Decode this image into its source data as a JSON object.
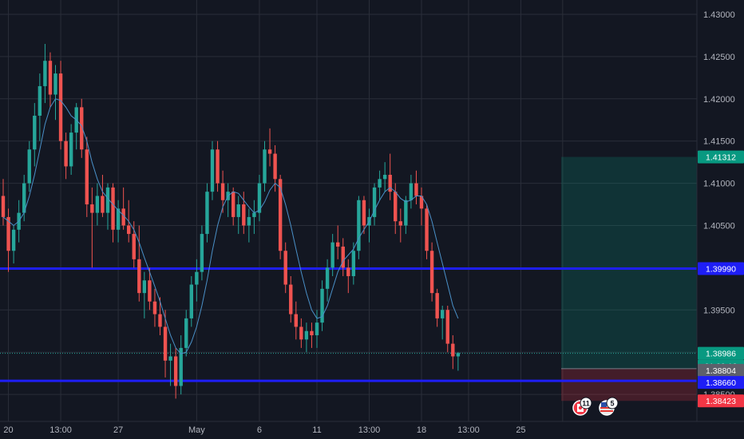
{
  "chart_data": {
    "type": "candlestick",
    "instrument_pair": "",
    "ylim": [
      1.38,
      1.431
    ],
    "y_ticks": [
      "1.43000",
      "1.42500",
      "1.42000",
      "1.41500",
      "1.41000",
      "1.40500",
      "1.40000",
      "1.39500",
      "1.39000",
      "1.38500"
    ],
    "x_ticks": [
      {
        "label": "20",
        "idx": 1
      },
      {
        "label": "13:00",
        "idx": 11
      },
      {
        "label": "27",
        "idx": 22
      },
      {
        "label": "May",
        "idx": 37
      },
      {
        "label": "6",
        "idx": 49
      },
      {
        "label": "11",
        "idx": 60
      },
      {
        "label": "13:00",
        "idx": 70
      },
      {
        "label": "18",
        "idx": 80
      },
      {
        "label": "13:00",
        "idx": 89
      },
      {
        "label": "25",
        "idx": 99
      },
      {
        "label": "",
        "idx": 107
      }
    ],
    "candles": [
      [
        1.4085,
        1.4105,
        1.405,
        1.406
      ],
      [
        1.406,
        1.407,
        1.3995,
        1.402
      ],
      [
        1.402,
        1.405,
        1.4005,
        1.4045
      ],
      [
        1.4045,
        1.408,
        1.403,
        1.4065
      ],
      [
        1.4065,
        1.411,
        1.4055,
        1.41
      ],
      [
        1.41,
        1.415,
        1.409,
        1.414
      ],
      [
        1.414,
        1.4195,
        1.412,
        1.418
      ],
      [
        1.418,
        1.423,
        1.415,
        1.4215
      ],
      [
        1.4215,
        1.4265,
        1.4195,
        1.4245
      ],
      [
        1.4245,
        1.4255,
        1.419,
        1.4205
      ],
      [
        1.4205,
        1.424,
        1.4175,
        1.423
      ],
      [
        1.423,
        1.4245,
        1.414,
        1.415
      ],
      [
        1.415,
        1.416,
        1.4105,
        1.412
      ],
      [
        1.412,
        1.417,
        1.411,
        1.416
      ],
      [
        1.416,
        1.4195,
        1.414,
        1.419
      ],
      [
        1.419,
        1.42,
        1.413,
        1.414
      ],
      [
        1.414,
        1.4155,
        1.406,
        1.4075
      ],
      [
        1.4075,
        1.4095,
        1.4,
        1.4065
      ],
      [
        1.4065,
        1.41,
        1.405,
        1.4085
      ],
      [
        1.4085,
        1.411,
        1.406,
        1.4065
      ],
      [
        1.4065,
        1.41,
        1.4045,
        1.4095
      ],
      [
        1.4095,
        1.41,
        1.403,
        1.4045
      ],
      [
        1.4045,
        1.408,
        1.403,
        1.407
      ],
      [
        1.407,
        1.4095,
        1.4045,
        1.405
      ],
      [
        1.405,
        1.408,
        1.403,
        1.404
      ],
      [
        1.404,
        1.4055,
        1.4,
        1.401
      ],
      [
        1.401,
        1.405,
        1.396,
        1.397
      ],
      [
        1.397,
        1.3995,
        1.394,
        1.3985
      ],
      [
        1.3985,
        1.4,
        1.395,
        1.396
      ],
      [
        1.396,
        1.3975,
        1.393,
        1.3945
      ],
      [
        1.3945,
        1.3965,
        1.392,
        1.393
      ],
      [
        1.393,
        1.395,
        1.387,
        1.389
      ],
      [
        1.389,
        1.391,
        1.386,
        1.3895
      ],
      [
        1.3895,
        1.3905,
        1.3845,
        1.386
      ],
      [
        1.386,
        1.392,
        1.385,
        1.3905
      ],
      [
        1.3905,
        1.395,
        1.3895,
        1.394
      ],
      [
        1.394,
        1.399,
        1.393,
        1.398
      ],
      [
        1.398,
        1.401,
        1.396,
        1.3995
      ],
      [
        1.3995,
        1.405,
        1.3985,
        1.404
      ],
      [
        1.404,
        1.41,
        1.403,
        1.409
      ],
      [
        1.409,
        1.415,
        1.408,
        1.414
      ],
      [
        1.414,
        1.415,
        1.409,
        1.41
      ],
      [
        1.41,
        1.4115,
        1.4065,
        1.408
      ],
      [
        1.408,
        1.41,
        1.406,
        1.409
      ],
      [
        1.409,
        1.4095,
        1.405,
        1.406
      ],
      [
        1.406,
        1.4085,
        1.404,
        1.4075
      ],
      [
        1.4075,
        1.409,
        1.404,
        1.405
      ],
      [
        1.405,
        1.407,
        1.403,
        1.406
      ],
      [
        1.406,
        1.408,
        1.404,
        1.4065
      ],
      [
        1.4065,
        1.411,
        1.4055,
        1.41
      ],
      [
        1.41,
        1.415,
        1.409,
        1.414
      ],
      [
        1.414,
        1.4165,
        1.412,
        1.4135
      ],
      [
        1.4135,
        1.4145,
        1.409,
        1.4105
      ],
      [
        1.4105,
        1.411,
        1.401,
        1.402
      ],
      [
        1.402,
        1.403,
        1.397,
        1.398
      ],
      [
        1.398,
        1.399,
        1.3935,
        1.3945
      ],
      [
        1.3945,
        1.396,
        1.3915,
        1.393
      ],
      [
        1.393,
        1.394,
        1.3905,
        1.3915
      ],
      [
        1.3915,
        1.3935,
        1.39,
        1.3925
      ],
      [
        1.3925,
        1.3935,
        1.3905,
        1.392
      ],
      [
        1.392,
        1.395,
        1.3905,
        1.3935
      ],
      [
        1.3935,
        1.3985,
        1.3925,
        1.3975
      ],
      [
        1.3975,
        1.401,
        1.396,
        1.4
      ],
      [
        1.4,
        1.404,
        1.399,
        1.403
      ],
      [
        1.403,
        1.405,
        1.401,
        1.4025
      ],
      [
        1.4025,
        1.4035,
        1.399,
        1.4
      ],
      [
        1.4,
        1.401,
        1.397,
        1.399
      ],
      [
        1.399,
        1.403,
        1.398,
        1.402
      ],
      [
        1.402,
        1.4085,
        1.401,
        1.408
      ],
      [
        1.408,
        1.4085,
        1.404,
        1.405
      ],
      [
        1.405,
        1.407,
        1.403,
        1.406
      ],
      [
        1.406,
        1.41,
        1.405,
        1.4095
      ],
      [
        1.4095,
        1.4115,
        1.408,
        1.4105
      ],
      [
        1.4105,
        1.4125,
        1.409,
        1.411
      ],
      [
        1.411,
        1.4135,
        1.408,
        1.409
      ],
      [
        1.409,
        1.41,
        1.404,
        1.4055
      ],
      [
        1.4055,
        1.407,
        1.403,
        1.405
      ],
      [
        1.405,
        1.4085,
        1.404,
        1.408
      ],
      [
        1.408,
        1.411,
        1.407,
        1.41
      ],
      [
        1.41,
        1.4115,
        1.4075,
        1.4085
      ],
      [
        1.4085,
        1.4095,
        1.405,
        1.407
      ],
      [
        1.407,
        1.4075,
        1.401,
        1.402
      ],
      [
        1.402,
        1.403,
        1.396,
        1.397
      ],
      [
        1.397,
        1.3975,
        1.393,
        1.394
      ],
      [
        1.394,
        1.3955,
        1.3915,
        1.395
      ],
      [
        1.395,
        1.3955,
        1.39,
        1.391
      ],
      [
        1.391,
        1.392,
        1.388,
        1.3895
      ],
      [
        1.3895,
        1.39,
        1.3878,
        1.3899
      ]
    ],
    "sma": [
      1.406,
      1.4055,
      1.405,
      1.4055,
      1.4065,
      1.4085,
      1.411,
      1.414,
      1.417,
      1.419,
      1.42,
      1.4198,
      1.419,
      1.418,
      1.4175,
      1.4168,
      1.415,
      1.4125,
      1.4105,
      1.409,
      1.4082,
      1.4075,
      1.4068,
      1.4062,
      1.4055,
      1.4045,
      1.403,
      1.4012,
      1.3995,
      1.3978,
      1.396,
      1.394,
      1.392,
      1.3905,
      1.3898,
      1.39,
      1.3912,
      1.393,
      1.3955,
      1.3985,
      1.402,
      1.405,
      1.4072,
      1.4085,
      1.409,
      1.4088,
      1.408,
      1.4072,
      1.4065,
      1.4068,
      1.4078,
      1.4092,
      1.41,
      1.4095,
      1.4075,
      1.405,
      1.4022,
      1.3995,
      1.397,
      1.395,
      1.394,
      1.3942,
      1.3955,
      1.3975,
      1.3995,
      1.4008,
      1.4015,
      1.4022,
      1.4035,
      1.4045,
      1.4055,
      1.4068,
      1.408,
      1.409,
      1.4095,
      1.409,
      1.4082,
      1.4078,
      1.408,
      1.4085,
      1.4085,
      1.4075,
      1.4055,
      1.403,
      1.4005,
      1.398,
      1.3955,
      1.394
    ],
    "horizontal_lines": [
      {
        "price": 1.3999,
        "label": "1.39990",
        "color": "#1e1ef5"
      },
      {
        "price": 1.3866,
        "label": "1.38660",
        "color": "#1e1ef5"
      }
    ],
    "position": {
      "entry": {
        "price": 1.38804,
        "label": "1.38804",
        "color": "#5d606b"
      },
      "target": {
        "price": 1.41312,
        "label": "1.41312",
        "color": "#089981"
      },
      "stop": {
        "price": 1.38423,
        "label": "1.38423",
        "color": "#f23645"
      }
    },
    "last_price": {
      "price": 1.38986,
      "label": "1.38986",
      "countdown": "01:39:13",
      "color": "#089981"
    },
    "event_markers": [
      {
        "label": "11",
        "flag": "ca"
      },
      {
        "label": "5",
        "flag": "us"
      }
    ]
  },
  "colors": {
    "background": "#131722",
    "grid": "#2a2e39",
    "up": "#26a69a",
    "down": "#ef5350",
    "sma": "#4a90c8",
    "axis_text": "#b2b5be"
  }
}
